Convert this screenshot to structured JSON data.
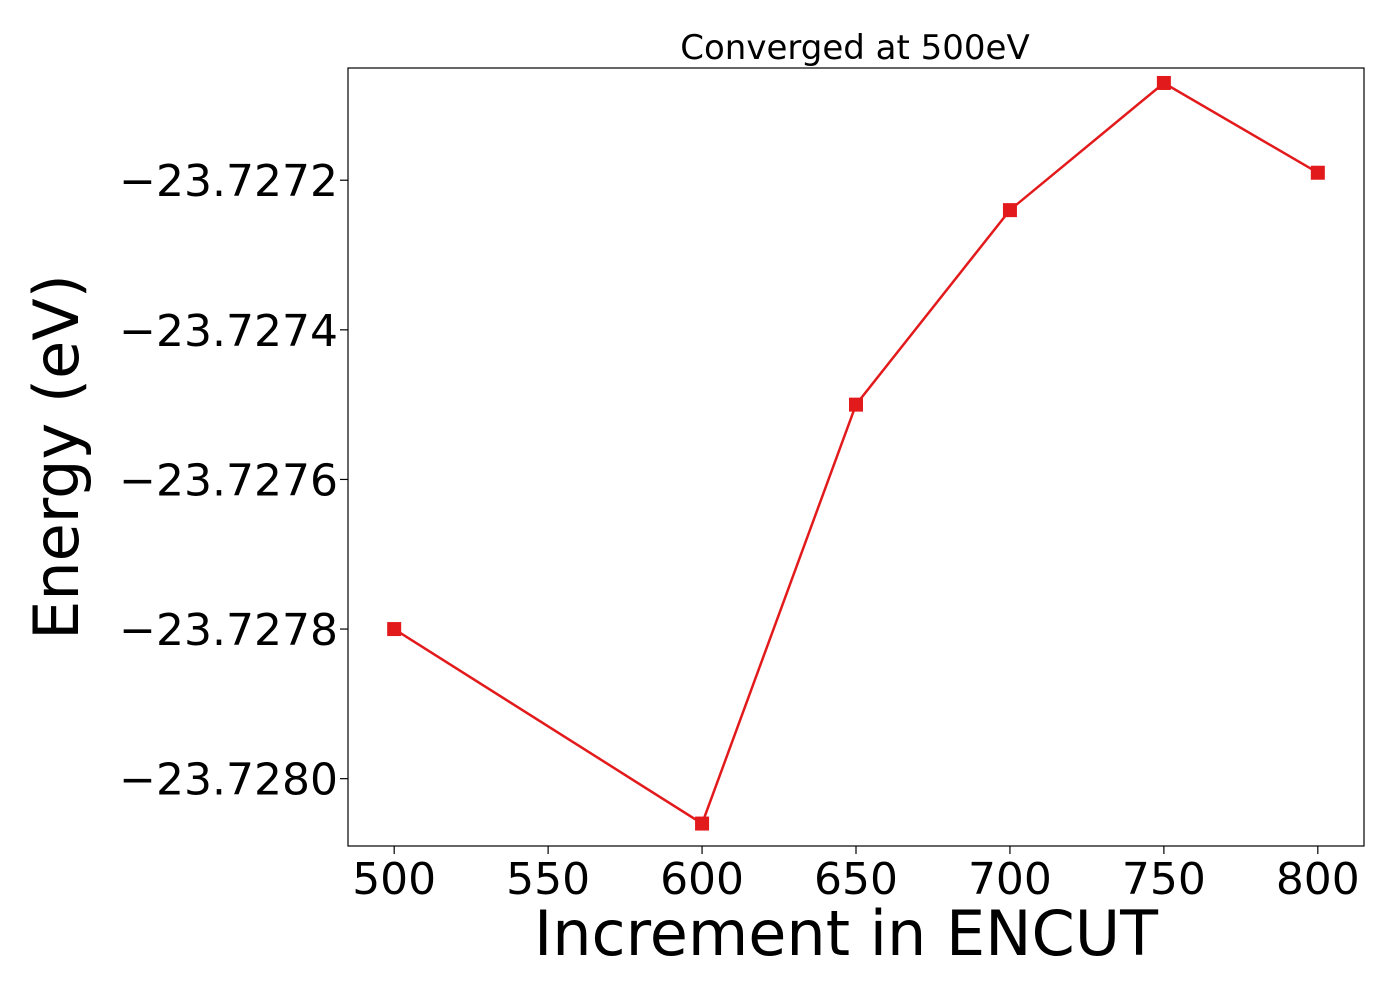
{
  "chart_data": {
    "type": "line",
    "title": "Converged at 500eV",
    "xlabel": "Increment in ENCUT",
    "ylabel": "Energy (eV)",
    "xlim": [
      485,
      815
    ],
    "ylim": [
      -23.72809,
      -23.72705
    ],
    "x_ticks": [
      500,
      550,
      600,
      650,
      700,
      750,
      800
    ],
    "x_tick_labels": [
      "500",
      "550",
      "600",
      "650",
      "700",
      "750",
      "800"
    ],
    "y_ticks": [
      -23.7272,
      -23.7274,
      -23.7276,
      -23.7278,
      -23.728
    ],
    "y_tick_labels": [
      "−23.7272",
      "−23.7274",
      "−23.7276",
      "−23.7278",
      "−23.7280"
    ],
    "grid": false,
    "series": [
      {
        "color": "#e31a1c",
        "marker": "square",
        "x": [
          500,
          600,
          650,
          700,
          750,
          800
        ],
        "y": [
          -23.7278,
          -23.72806,
          -23.7275,
          -23.72724,
          -23.72707,
          -23.72719
        ]
      }
    ]
  }
}
